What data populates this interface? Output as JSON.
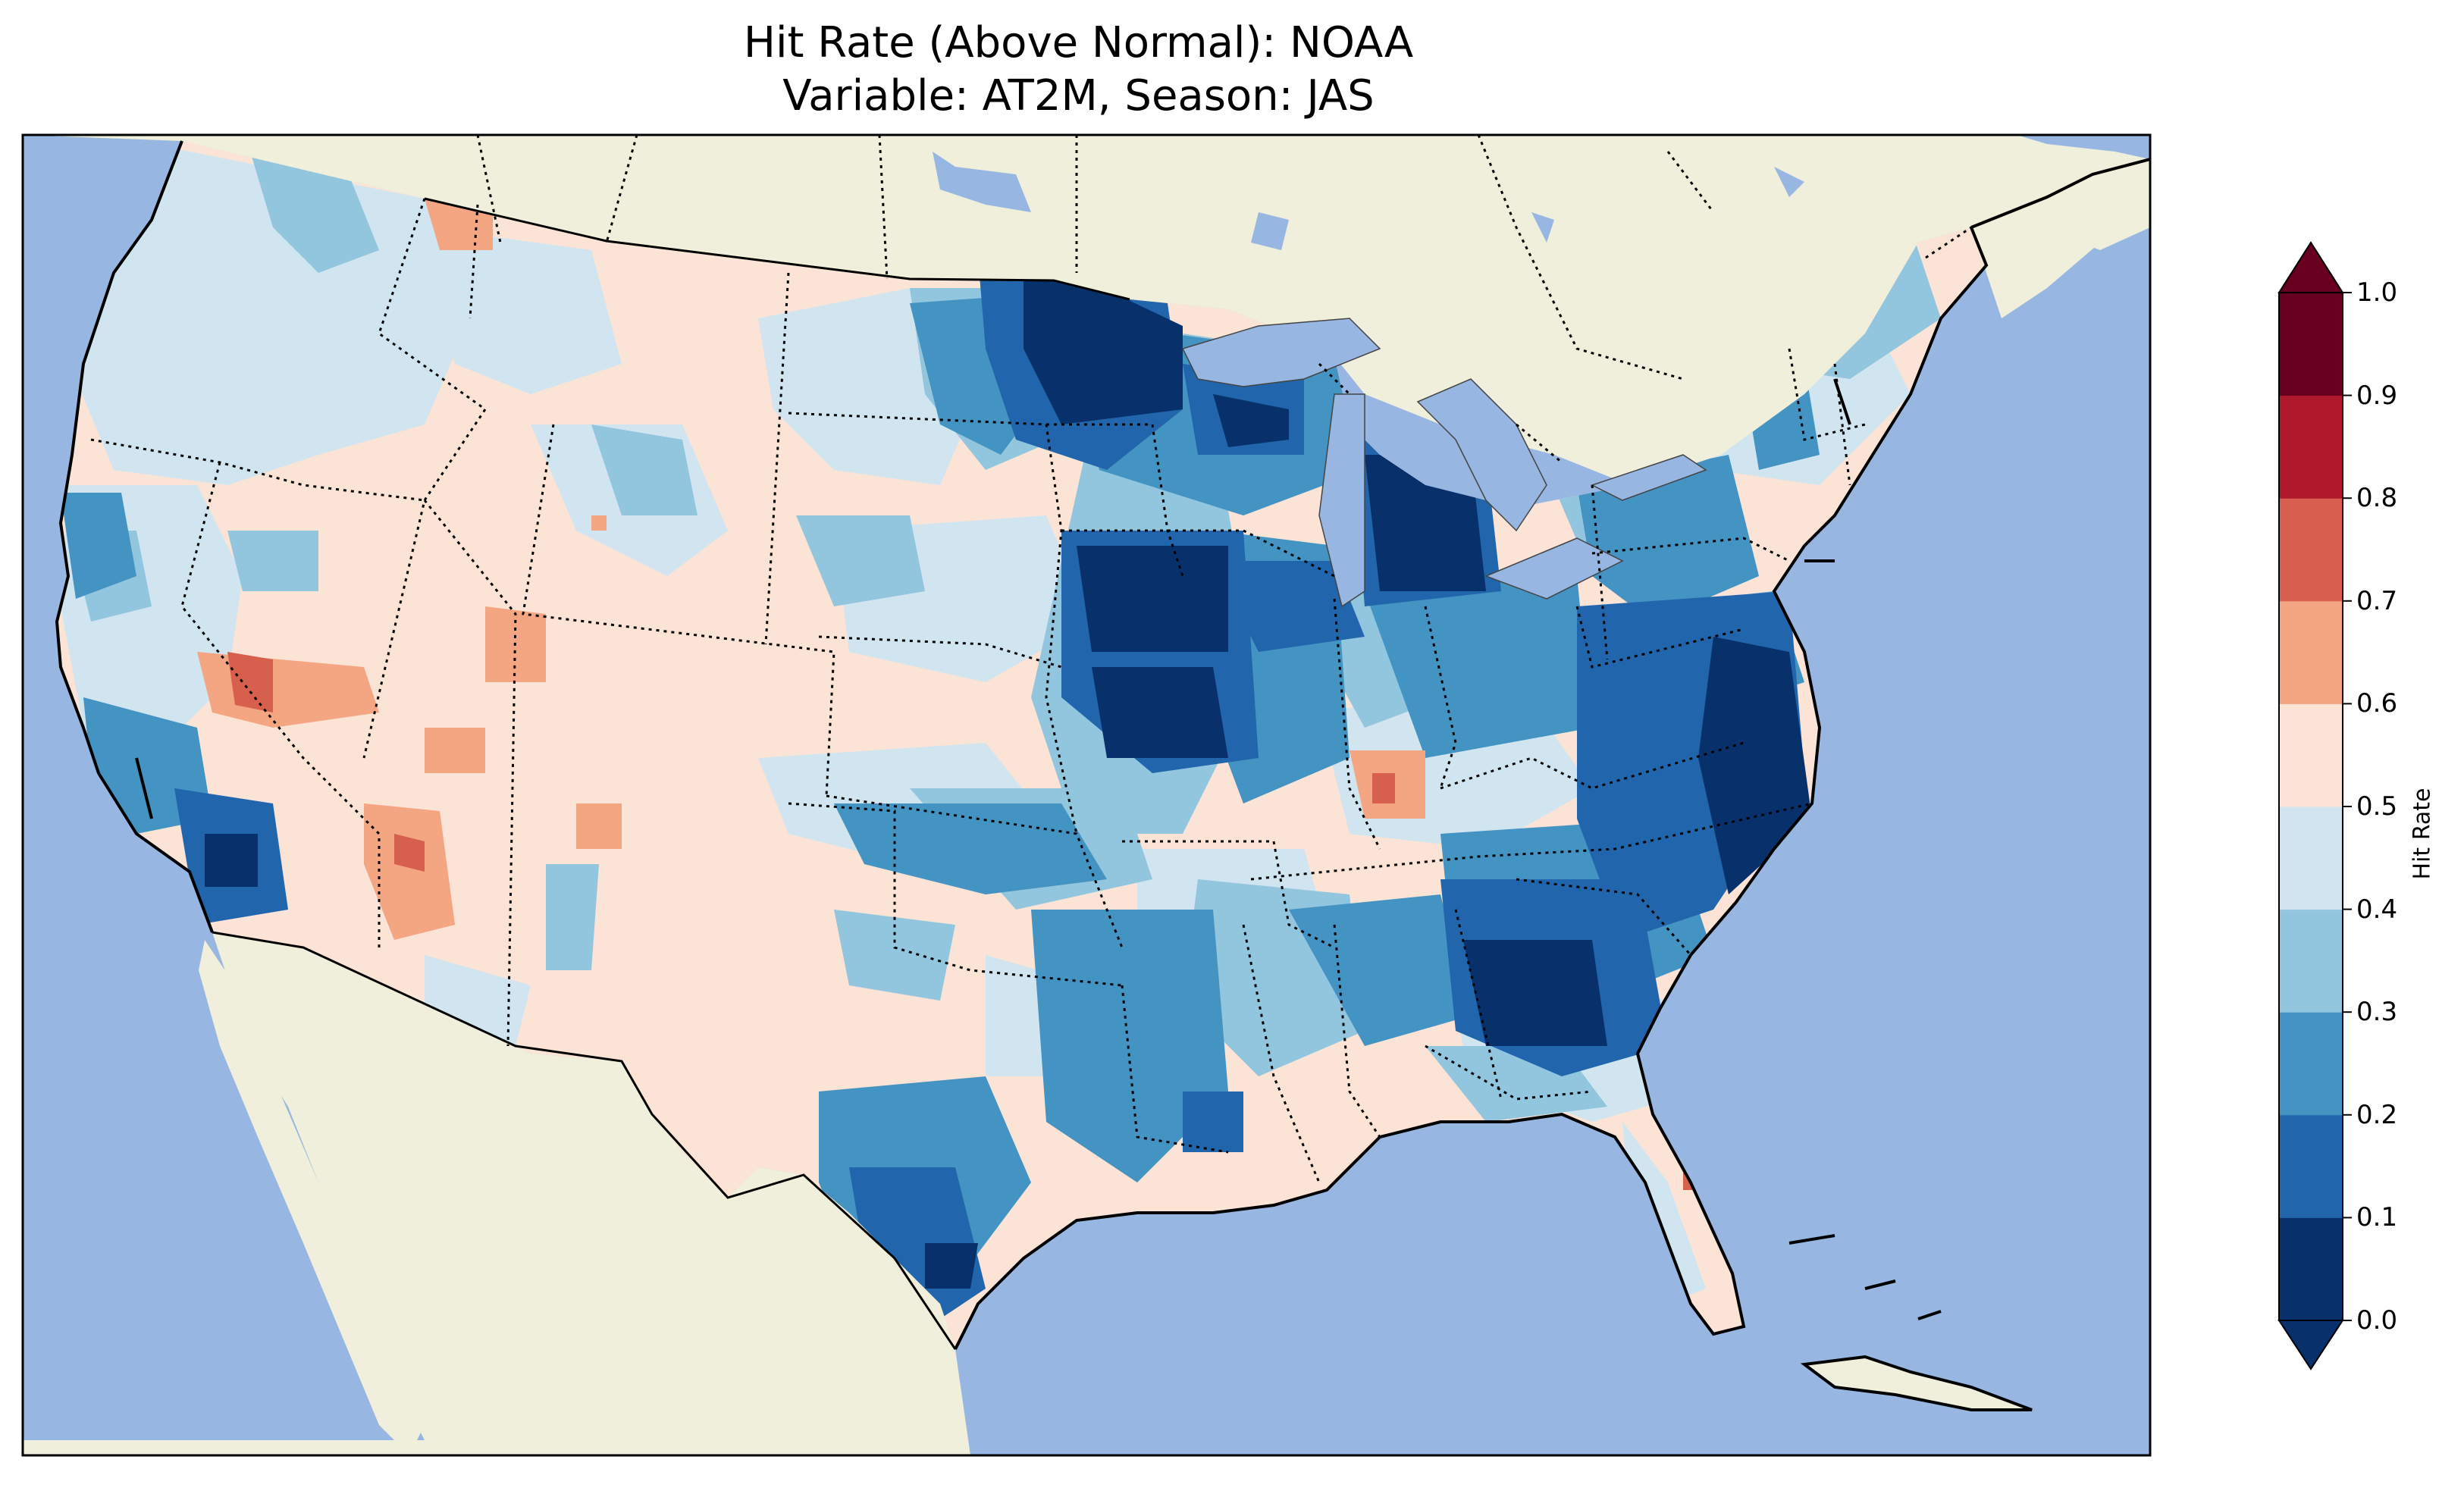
{
  "title": {
    "line1": "Hit Rate (Above Normal): NOAA",
    "line2": "Variable: AT2M, Season: JAS"
  },
  "colorbar": {
    "label": "Hit Rate",
    "ticks": [
      "0.0",
      "0.1",
      "0.2",
      "0.3",
      "0.4",
      "0.5",
      "0.6",
      "0.7",
      "0.8",
      "0.9",
      "1.0"
    ],
    "colors": [
      "#08306b",
      "#2166ac",
      "#4393c3",
      "#92c5de",
      "#d1e5f0",
      "#fbe3d6",
      "#f4a582",
      "#d6604d",
      "#b2182b",
      "#67001f"
    ],
    "extend": "both",
    "range": [
      0.0,
      1.0
    ]
  },
  "map": {
    "ocean_color": "#97b6e1",
    "land_color": "#efefdb",
    "projection": "Lambert Conformal, CONUS",
    "features": [
      "coastlines",
      "state borders",
      "country borders",
      "lakes"
    ]
  }
}
